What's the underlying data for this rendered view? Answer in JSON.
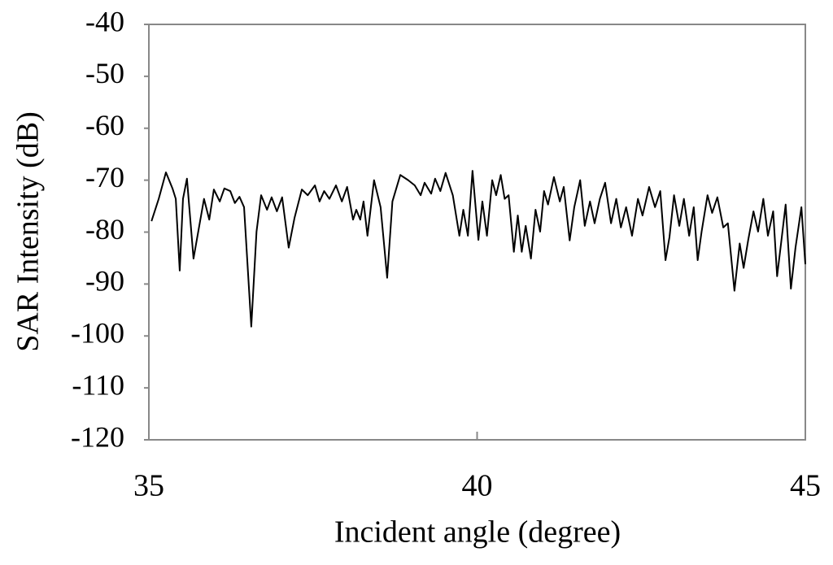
{
  "chart_data": {
    "type": "line",
    "x_label": "Incident angle (degree)",
    "y_label": "SAR Intensity (dB)",
    "xlim": [
      35,
      45
    ],
    "xticks": [
      35,
      40,
      45
    ],
    "ylim": [
      -120,
      -40
    ],
    "yticks": [
      -40,
      -50,
      -60,
      -70,
      -80,
      -90,
      -100,
      -110,
      -120
    ],
    "color": "#000000",
    "x": [
      35.04,
      35.15,
      35.26,
      35.36,
      35.41,
      35.47,
      35.52,
      35.58,
      35.68,
      35.84,
      35.92,
      35.99,
      36.08,
      36.15,
      36.24,
      36.31,
      36.38,
      36.45,
      36.56,
      36.64,
      36.71,
      36.8,
      36.87,
      36.95,
      37.03,
      37.13,
      37.22,
      37.33,
      37.42,
      37.53,
      37.6,
      37.67,
      37.75,
      37.85,
      37.94,
      38.02,
      38.11,
      38.16,
      38.22,
      38.27,
      38.33,
      38.43,
      38.53,
      38.63,
      38.71,
      38.83,
      38.95,
      39.05,
      39.14,
      39.2,
      39.3,
      39.36,
      39.44,
      39.52,
      39.63,
      39.73,
      39.79,
      39.86,
      39.93,
      40.02,
      40.08,
      40.15,
      40.23,
      40.29,
      40.36,
      40.42,
      40.48,
      40.56,
      40.62,
      40.68,
      40.74,
      40.82,
      40.89,
      40.96,
      41.02,
      41.08,
      41.17,
      41.26,
      41.32,
      41.41,
      41.48,
      41.57,
      41.64,
      41.72,
      41.79,
      41.87,
      41.95,
      42.04,
      42.12,
      42.19,
      42.27,
      42.36,
      42.45,
      42.52,
      42.62,
      42.71,
      42.79,
      42.87,
      42.93,
      43.0,
      43.08,
      43.15,
      43.23,
      43.3,
      43.36,
      43.42,
      43.51,
      43.58,
      43.66,
      43.75,
      43.82,
      43.92,
      44.0,
      44.06,
      44.13,
      44.21,
      44.28,
      44.36,
      44.43,
      44.51,
      44.57,
      44.63,
      44.7,
      44.78,
      44.85,
      44.94,
      45.0
    ],
    "values": [
      -77.9,
      -73.6,
      -68.5,
      -71.6,
      -73.6,
      -87.4,
      -73.6,
      -69.7,
      -85.1,
      -73.6,
      -77.6,
      -71.8,
      -74.1,
      -71.6,
      -72.1,
      -74.4,
      -73.2,
      -75.2,
      -98.2,
      -79.9,
      -72.9,
      -75.7,
      -73.3,
      -76.0,
      -73.3,
      -83.0,
      -77.2,
      -71.8,
      -72.9,
      -71.0,
      -74.1,
      -72.1,
      -73.6,
      -71.0,
      -74.1,
      -71.3,
      -77.6,
      -75.7,
      -77.6,
      -74.1,
      -80.7,
      -70.0,
      -75.2,
      -88.8,
      -74.1,
      -69.0,
      -70.0,
      -71.0,
      -72.9,
      -70.5,
      -72.6,
      -69.7,
      -72.1,
      -68.6,
      -72.9,
      -80.7,
      -75.7,
      -80.7,
      -68.2,
      -81.5,
      -74.1,
      -80.7,
      -70.0,
      -72.9,
      -69.0,
      -73.6,
      -72.9,
      -83.8,
      -76.8,
      -83.8,
      -78.8,
      -85.1,
      -75.7,
      -79.9,
      -72.1,
      -74.7,
      -69.4,
      -74.1,
      -71.3,
      -81.6,
      -75.2,
      -70.0,
      -78.8,
      -74.1,
      -78.3,
      -73.6,
      -70.5,
      -78.3,
      -73.6,
      -79.1,
      -75.2,
      -80.7,
      -73.6,
      -76.8,
      -71.3,
      -75.2,
      -72.1,
      -85.4,
      -81.0,
      -72.9,
      -78.8,
      -73.6,
      -80.7,
      -75.2,
      -85.4,
      -79.9,
      -72.9,
      -76.3,
      -73.3,
      -79.1,
      -78.3,
      -91.3,
      -82.2,
      -86.9,
      -81.5,
      -76.0,
      -79.9,
      -73.6,
      -80.7,
      -76.0,
      -88.5,
      -82.2,
      -74.7,
      -90.9,
      -83.0,
      -75.2,
      -86.2
    ]
  }
}
